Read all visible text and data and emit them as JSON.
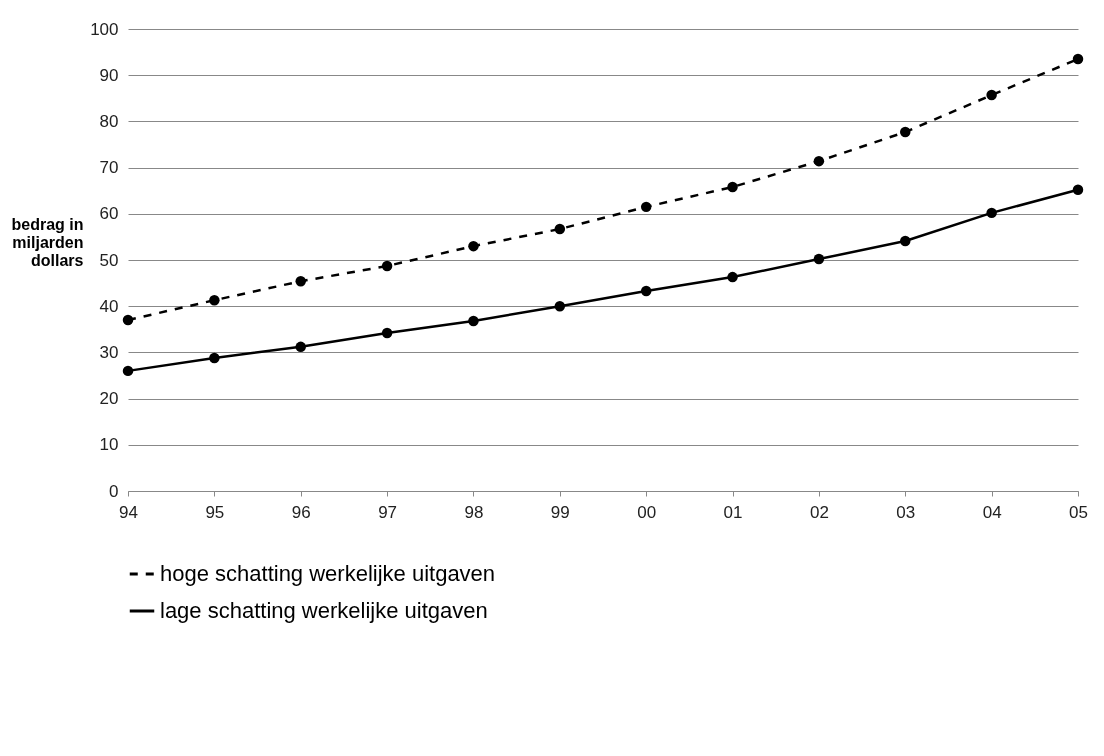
{
  "chart_data": {
    "type": "line",
    "ylabel": "bedrag in miljarden dollars",
    "categories": [
      "94",
      "95",
      "96",
      "97",
      "98",
      "99",
      "00",
      "01",
      "02",
      "03",
      "04",
      "05"
    ],
    "series": [
      {
        "name": "hoge schatting werkelijke uitgaven",
        "color": "#000000",
        "line_style": "dashed",
        "values": [
          37,
          41.3,
          45.4,
          48.7,
          53,
          56.7,
          61.5,
          65.8,
          71.4,
          77.7,
          85.7,
          93.5
        ]
      },
      {
        "name": "lage schatting werkelijke uitgaven",
        "color": "#000000",
        "line_style": "solid",
        "values": [
          26,
          28.8,
          31.2,
          34.2,
          36.8,
          40,
          43.3,
          46.3,
          50.2,
          54.1,
          60.2,
          65.2
        ]
      }
    ],
    "ylim": [
      0,
      100
    ],
    "yticks": [
      0,
      10,
      20,
      30,
      40,
      50,
      60,
      70,
      80,
      90,
      100
    ],
    "grid": "y",
    "legend": "bottom",
    "marker": "circle"
  }
}
